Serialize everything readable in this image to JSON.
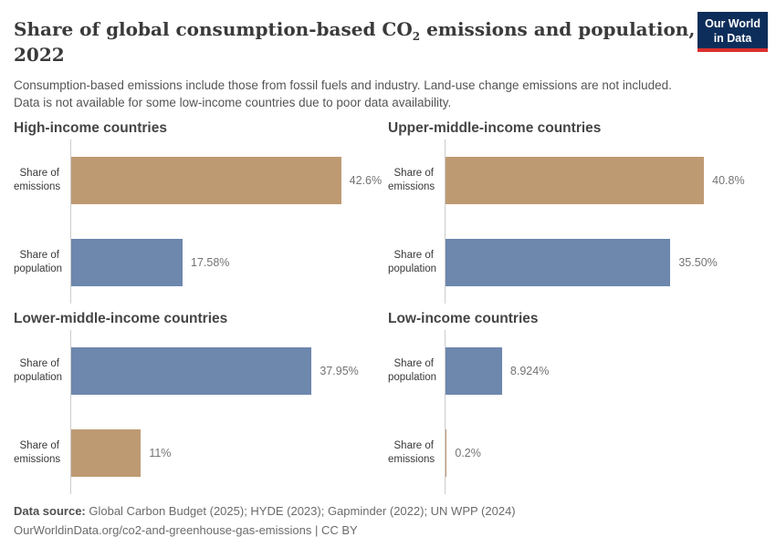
{
  "header": {
    "title_line1_pre": "Share of global consumption-based CO",
    "title_sub": "2",
    "title_line1_post": " emissions and population,",
    "title_line2": "2022",
    "subtitle_lines": [
      "Consumption-based emissions include those from fossil fuels and industry. Land-use change emissions are not included.",
      "Data is not available for some low-income countries due to poor data availability."
    ],
    "logo_line1": "Our World",
    "logo_line2": "in Data",
    "logo_bg_color": "#0d2e5a",
    "logo_accent_color": "#db302f"
  },
  "chart_data": {
    "type": "bar",
    "title": "Share of global consumption-based CO₂ emissions and population, 2022",
    "orientation": "horizontal",
    "xlim": [
      0,
      50
    ],
    "grid": false,
    "value_labels": "outside-end",
    "colors": {
      "emissions": "#be9a73",
      "population": "#6d87ad"
    },
    "panels": [
      {
        "title": "High-income countries",
        "bars": [
          {
            "label": "Share of emissions",
            "series": "emissions",
            "value": 42.6,
            "value_label": "42.6%"
          },
          {
            "label": "Share of population",
            "series": "population",
            "value": 17.58,
            "value_label": "17.58%"
          }
        ]
      },
      {
        "title": "Upper-middle-income countries",
        "bars": [
          {
            "label": "Share of emissions",
            "series": "emissions",
            "value": 40.8,
            "value_label": "40.8%"
          },
          {
            "label": "Share of population",
            "series": "population",
            "value": 35.5,
            "value_label": "35.50%"
          }
        ]
      },
      {
        "title": "Lower-middle-income countries",
        "bars": [
          {
            "label": "Share of population",
            "series": "population",
            "value": 37.95,
            "value_label": "37.95%"
          },
          {
            "label": "Share of emissions",
            "series": "emissions",
            "value": 11,
            "value_label": "11%"
          }
        ]
      },
      {
        "title": "Low-income countries",
        "bars": [
          {
            "label": "Share of population",
            "series": "population",
            "value": 8.924,
            "value_label": "8.924%"
          },
          {
            "label": "Share of emissions",
            "series": "emissions",
            "value": 0.2,
            "value_label": "0.2%"
          }
        ]
      }
    ]
  },
  "footer": {
    "source_label": "Data source:",
    "sources": " Global Carbon Budget (2025); HYDE (2023); Gapminder (2022); UN WPP (2024)",
    "url_line": "OurWorldinData.org/co2-and-greenhouse-gas-emissions | CC BY"
  }
}
